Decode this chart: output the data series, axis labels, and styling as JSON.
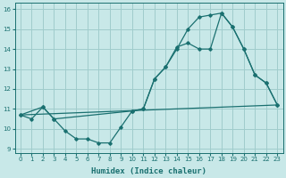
{
  "xlabel": "Humidex (Indice chaleur)",
  "xlim": [
    -0.5,
    23.5
  ],
  "ylim": [
    8.8,
    16.3
  ],
  "xticks": [
    0,
    1,
    2,
    3,
    4,
    5,
    6,
    7,
    8,
    9,
    10,
    11,
    12,
    13,
    14,
    15,
    16,
    17,
    18,
    19,
    20,
    21,
    22,
    23
  ],
  "yticks": [
    9,
    10,
    11,
    12,
    13,
    14,
    15,
    16
  ],
  "bg_color": "#c8e8e8",
  "line_color": "#1a7070",
  "grid_color": "#a0cccc",
  "series": {
    "line1": {
      "x": [
        0,
        1,
        2,
        3,
        4,
        5,
        6,
        7,
        8,
        9,
        10,
        11,
        12,
        13,
        14,
        15,
        16,
        17,
        18,
        19,
        20,
        21,
        22,
        23
      ],
      "y": [
        10.7,
        10.5,
        11.1,
        10.5,
        9.9,
        9.5,
        9.5,
        9.3,
        9.3,
        10.1,
        10.9,
        11.0,
        12.5,
        13.1,
        14.1,
        14.3,
        14.0,
        14.0,
        15.8,
        15.1,
        14.0,
        12.7,
        12.3,
        11.2
      ]
    },
    "line2": {
      "x": [
        0,
        2,
        3,
        10,
        11,
        12,
        13,
        14,
        15,
        16,
        17,
        18,
        19,
        20,
        21,
        22,
        23
      ],
      "y": [
        10.7,
        11.1,
        10.5,
        10.9,
        11.0,
        12.5,
        13.1,
        14.0,
        15.0,
        15.6,
        15.7,
        15.8,
        15.1,
        14.0,
        12.7,
        12.3,
        11.2
      ]
    },
    "line3": {
      "x": [
        0,
        23
      ],
      "y": [
        10.7,
        11.2
      ]
    }
  }
}
